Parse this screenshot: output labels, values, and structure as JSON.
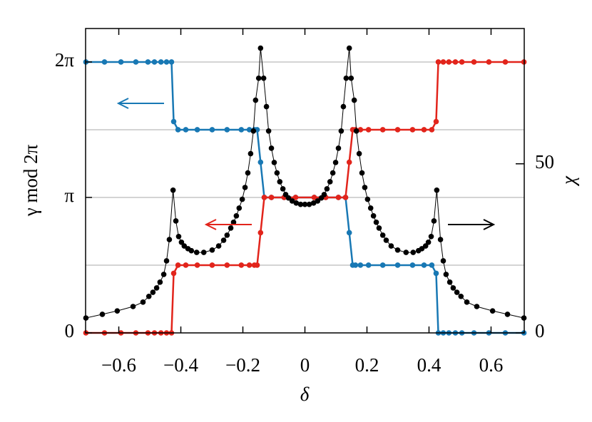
{
  "chart_data": {
    "type": "line",
    "xlabel": "δ",
    "ylabel": "γ  mod 2π",
    "y2label": "χ",
    "xlim": [
      -0.707,
      0.707
    ],
    "xticks": [
      {
        "value": -0.6,
        "label": "−0.6"
      },
      {
        "value": -0.4,
        "label": "−0.4"
      },
      {
        "value": -0.2,
        "label": "−0.2"
      },
      0,
      0.2,
      0.4,
      0.6
    ],
    "ylim": [
      0,
      2.247
    ],
    "yticks": [
      0,
      {
        "value": 1,
        "label": "π"
      },
      {
        "value": 2,
        "label": "2π"
      }
    ],
    "ygrid": [
      0.5,
      1,
      1.5,
      2
    ],
    "y2lim": [
      0,
      90
    ],
    "y2ticks": [
      0,
      50
    ],
    "series": [
      {
        "color": "#1878b4",
        "axis": "y",
        "x": [
          -0.706,
          -0.646,
          -0.593,
          -0.545,
          -0.506,
          -0.485,
          -0.464,
          -0.446,
          -0.43,
          -0.423,
          -0.409,
          -0.384,
          -0.347,
          -0.299,
          -0.251,
          -0.205,
          -0.179,
          -0.163,
          -0.154,
          -0.143,
          -0.131,
          -0.108,
          -0.067,
          -0.03,
          0.03,
          0.067,
          0.108,
          0.131,
          0.143,
          0.154,
          0.163,
          0.179,
          0.205,
          0.251,
          0.299,
          0.347,
          0.384,
          0.409,
          0.423,
          0.43,
          0.446,
          0.464,
          0.485,
          0.506,
          0.545,
          0.593,
          0.646,
          0.706
        ],
        "values": [
          2,
          2,
          2,
          2,
          2,
          2,
          2,
          2,
          2,
          1.56,
          1.5,
          1.5,
          1.5,
          1.5,
          1.5,
          1.5,
          1.5,
          1.5,
          1.5,
          1.26,
          1,
          1,
          1,
          1,
          1,
          1,
          1,
          1,
          0.74,
          0.5,
          0.5,
          0.5,
          0.5,
          0.5,
          0.5,
          0.5,
          0.5,
          0.5,
          0.44,
          0,
          0,
          0,
          0,
          0,
          0,
          0,
          0,
          0
        ]
      },
      {
        "color": "#e2241b",
        "axis": "y",
        "x": [
          -0.706,
          -0.646,
          -0.593,
          -0.545,
          -0.506,
          -0.485,
          -0.464,
          -0.446,
          -0.43,
          -0.423,
          -0.409,
          -0.384,
          -0.347,
          -0.299,
          -0.251,
          -0.205,
          -0.179,
          -0.163,
          -0.154,
          -0.143,
          -0.131,
          -0.108,
          -0.067,
          -0.03,
          0.03,
          0.067,
          0.108,
          0.131,
          0.143,
          0.154,
          0.163,
          0.179,
          0.205,
          0.251,
          0.299,
          0.347,
          0.384,
          0.409,
          0.423,
          0.43,
          0.446,
          0.464,
          0.485,
          0.506,
          0.545,
          0.593,
          0.646,
          0.706
        ],
        "values": [
          0,
          0,
          0,
          0,
          0,
          0,
          0,
          0,
          0,
          0.44,
          0.5,
          0.5,
          0.5,
          0.5,
          0.5,
          0.5,
          0.5,
          0.5,
          0.5,
          0.74,
          1,
          1,
          1,
          1,
          1,
          1,
          1,
          1,
          1.26,
          1.5,
          1.5,
          1.5,
          1.5,
          1.5,
          1.5,
          1.5,
          1.5,
          1.5,
          1.56,
          2,
          2,
          2,
          2,
          2,
          2,
          2,
          2,
          2
        ]
      },
      {
        "color": "#000000",
        "axis": "y2",
        "x": [
          -0.706,
          -0.653,
          -0.605,
          -0.554,
          -0.522,
          -0.503,
          -0.49,
          -0.478,
          -0.467,
          -0.455,
          -0.446,
          -0.437,
          -0.425,
          -0.416,
          -0.407,
          -0.398,
          -0.389,
          -0.377,
          -0.366,
          -0.349,
          -0.326,
          -0.299,
          -0.278,
          -0.262,
          -0.251,
          -0.239,
          -0.23,
          -0.221,
          -0.212,
          -0.202,
          -0.193,
          -0.184,
          -0.175,
          -0.166,
          -0.159,
          -0.149,
          -0.143,
          -0.133,
          -0.124,
          -0.117,
          -0.108,
          -0.099,
          -0.09,
          -0.081,
          -0.071,
          -0.062,
          -0.053,
          -0.041,
          -0.028,
          -0.014,
          0,
          0.014,
          0.028,
          0.041,
          0.053,
          0.062,
          0.071,
          0.081,
          0.09,
          0.099,
          0.108,
          0.117,
          0.124,
          0.133,
          0.143,
          0.149,
          0.159,
          0.166,
          0.175,
          0.184,
          0.193,
          0.202,
          0.212,
          0.221,
          0.23,
          0.239,
          0.251,
          0.262,
          0.278,
          0.299,
          0.326,
          0.349,
          0.366,
          0.377,
          0.389,
          0.398,
          0.407,
          0.416,
          0.425,
          0.437,
          0.446,
          0.455,
          0.467,
          0.478,
          0.49,
          0.503,
          0.522,
          0.554,
          0.605,
          0.653,
          0.706
        ],
        "values": [
          4.4,
          5.5,
          6.5,
          7.8,
          9.1,
          10.8,
          12.0,
          13.3,
          15.0,
          17.3,
          21.3,
          27.6,
          42.2,
          33.1,
          28.5,
          26.8,
          25.7,
          24.9,
          24.3,
          23.8,
          23.8,
          24.5,
          25.7,
          27.4,
          28.9,
          31.0,
          32.7,
          34.6,
          36.9,
          39.5,
          43.0,
          47.3,
          53.0,
          59.7,
          68.8,
          75.3,
          84.2,
          75.3,
          66.9,
          59.7,
          54.6,
          50.4,
          47.3,
          44.7,
          42.6,
          40.9,
          39.9,
          39.0,
          38.4,
          38.0,
          38.0,
          38.0,
          38.4,
          39.0,
          39.9,
          40.9,
          42.6,
          44.7,
          47.3,
          50.4,
          54.6,
          59.7,
          66.9,
          75.3,
          84.2,
          75.3,
          68.8,
          59.7,
          53.0,
          47.3,
          43.0,
          39.5,
          36.9,
          34.6,
          32.7,
          31.0,
          28.9,
          27.4,
          25.7,
          24.5,
          23.8,
          23.8,
          24.3,
          24.9,
          25.7,
          26.8,
          28.5,
          33.1,
          42.2,
          27.6,
          21.3,
          17.3,
          15.0,
          13.3,
          12.0,
          10.8,
          9.1,
          7.8,
          6.5,
          5.5,
          4.4
        ]
      }
    ]
  }
}
